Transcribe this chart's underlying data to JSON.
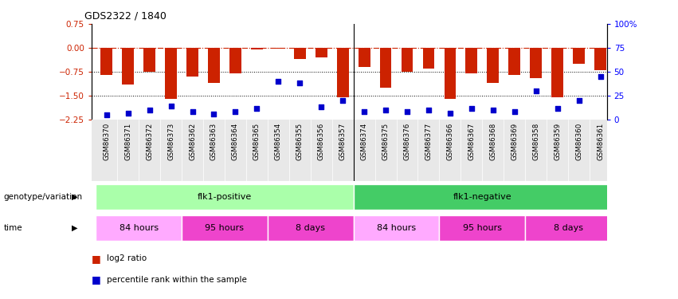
{
  "title": "GDS2322 / 1840",
  "samples": [
    "GSM86370",
    "GSM86371",
    "GSM86372",
    "GSM86373",
    "GSM86362",
    "GSM86363",
    "GSM86364",
    "GSM86365",
    "GSM86354",
    "GSM86355",
    "GSM86356",
    "GSM86357",
    "GSM86374",
    "GSM86375",
    "GSM86376",
    "GSM86377",
    "GSM86366",
    "GSM86367",
    "GSM86368",
    "GSM86369",
    "GSM86358",
    "GSM86359",
    "GSM86360",
    "GSM86361"
  ],
  "log2_ratio": [
    -0.85,
    -1.15,
    -0.75,
    -1.6,
    -0.9,
    -1.1,
    -0.8,
    -0.05,
    -0.02,
    -0.35,
    -0.3,
    -1.55,
    -0.6,
    -1.25,
    -0.75,
    -0.65,
    -1.6,
    -0.8,
    -1.1,
    -0.85,
    -0.95,
    -1.55,
    -0.5,
    -0.7
  ],
  "percentile_rank": [
    5,
    7,
    10,
    14,
    8,
    6,
    8,
    12,
    40,
    38,
    13,
    20,
    8,
    10,
    8,
    10,
    7,
    12,
    10,
    8,
    30,
    12,
    20,
    45
  ],
  "ylim_left": [
    -2.25,
    0.75
  ],
  "ylim_right": [
    0,
    100
  ],
  "yticks_left": [
    0.75,
    0,
    -0.75,
    -1.5,
    -2.25
  ],
  "yticks_right": [
    100,
    75,
    50,
    25,
    0
  ],
  "bar_color": "#CC2200",
  "dot_color": "#0000CC",
  "genotype_groups": [
    {
      "label": "flk1-positive",
      "start": 0,
      "end": 11,
      "color": "#AAFFAA"
    },
    {
      "label": "flk1-negative",
      "start": 12,
      "end": 23,
      "color": "#44CC66"
    }
  ],
  "time_groups": [
    {
      "label": "84 hours",
      "start": 0,
      "end": 3,
      "color": "#FFAAFF"
    },
    {
      "label": "95 hours",
      "start": 4,
      "end": 7,
      "color": "#EE44CC"
    },
    {
      "label": "8 days",
      "start": 8,
      "end": 11,
      "color": "#EE44CC"
    },
    {
      "label": "84 hours",
      "start": 12,
      "end": 15,
      "color": "#FFAAFF"
    },
    {
      "label": "95 hours",
      "start": 16,
      "end": 19,
      "color": "#EE44CC"
    },
    {
      "label": "8 days",
      "start": 20,
      "end": 23,
      "color": "#EE44CC"
    }
  ],
  "legend_red_label": "log2 ratio",
  "legend_blue_label": "percentile rank within the sample",
  "genotype_label": "genotype/variation",
  "time_label": "time",
  "xlim": [
    -0.7,
    23.3
  ],
  "bar_width": 0.55
}
